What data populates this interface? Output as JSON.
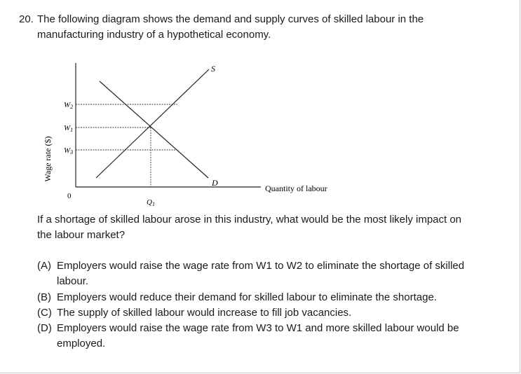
{
  "question": {
    "number": "20.",
    "stem_line1": "The following diagram shows the demand and supply curves of skilled labour in the",
    "stem_line2": "manufacturing industry of a hypothetical economy.",
    "prompt_line1": "If a shortage of skilled labour arose in this industry, what would be the most likely impact on",
    "prompt_line2": "the labour market?"
  },
  "diagram": {
    "y_axis_label": "Wage rate ($)",
    "x_axis_label": "Quantity of labour",
    "origin": "0",
    "w2": "W",
    "w2_sub": "2",
    "w1": "W",
    "w1_sub": "1",
    "w3": "W",
    "w3_sub": "3",
    "q1": "Q",
    "q1_sub": "1",
    "supply_label": "S",
    "demand_label": "D"
  },
  "options": [
    {
      "letter": "(A)",
      "line1": "Employers would raise the wage rate from W1 to W2 to eliminate the shortage of skilled",
      "line2": "labour."
    },
    {
      "letter": "(B)",
      "line1": "Employers would reduce their demand for skilled labour to eliminate the shortage.",
      "line2": ""
    },
    {
      "letter": "(C)",
      "line1": "The supply of skilled labour would increase to fill job vacancies.",
      "line2": ""
    },
    {
      "letter": "(D)",
      "line1": "Employers would raise the wage rate from W3 to W1 and more skilled labour would be",
      "line2": "employed."
    }
  ]
}
